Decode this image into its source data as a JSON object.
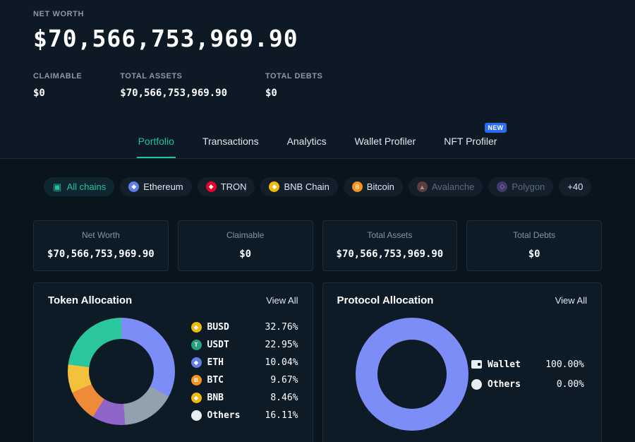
{
  "theme": {
    "accent_teal": "#1fc2a0",
    "new_badge_blue": "#2b6cf5",
    "page_bg": "#0a141d",
    "top_bg": "#0d1a25",
    "card_bg": "#0d1b27"
  },
  "header": {
    "net_worth_label": "NET WORTH",
    "net_worth_value": "$70,566,753,969.90",
    "stats": [
      {
        "label": "CLAIMABLE",
        "value": "$0"
      },
      {
        "label": "TOTAL ASSETS",
        "value": "$70,566,753,969.90"
      },
      {
        "label": "TOTAL DEBTS",
        "value": "$0"
      }
    ]
  },
  "tabs": [
    {
      "label": "Portfolio",
      "active": true
    },
    {
      "label": "Transactions",
      "active": false
    },
    {
      "label": "Analytics",
      "active": false
    },
    {
      "label": "Wallet Profiler",
      "active": false
    },
    {
      "label": "NFT Profiler",
      "active": false,
      "badge": "NEW"
    }
  ],
  "chains": [
    {
      "label": "All chains",
      "glyph": "▣",
      "icon_color": "#1fc2a0",
      "active": true
    },
    {
      "label": "Ethereum",
      "glyph": "◆",
      "icon_bg": "#627eea"
    },
    {
      "label": "TRON",
      "glyph": "◆",
      "icon_bg": "#eb0029"
    },
    {
      "label": "BNB Chain",
      "glyph": "◆",
      "icon_bg": "#f0b90b"
    },
    {
      "label": "Bitcoin",
      "glyph": "B",
      "icon_bg": "#f7931a"
    },
    {
      "label": "Avalanche",
      "glyph": "▲",
      "icon_bg": "#a0524c",
      "disabled": true
    },
    {
      "label": "Polygon",
      "glyph": "◇",
      "icon_bg": "#6d4fa3",
      "disabled": true
    },
    {
      "label": "+40"
    }
  ],
  "summary_cards": [
    {
      "label": "Net Worth",
      "value": "$70,566,753,969.90"
    },
    {
      "label": "Claimable",
      "value": "$0"
    },
    {
      "label": "Total Assets",
      "value": "$70,566,753,969.90"
    },
    {
      "label": "Total Debts",
      "value": "$0"
    }
  ],
  "chart_data": [
    {
      "type": "pie",
      "title": "Token Allocation",
      "view_all_label": "View All",
      "legend_position": "right",
      "series": [
        {
          "name": "BUSD",
          "value": 32.76,
          "display": "32.76%",
          "color": "#7d8df7",
          "icon_bg": "#f0b90b",
          "icon_glyph": "◆"
        },
        {
          "name": "USDT",
          "value": 22.95,
          "display": "22.95%",
          "color": "#2bc79c",
          "icon_bg": "#26a17b",
          "icon_glyph": "T"
        },
        {
          "name": "ETH",
          "value": 10.04,
          "display": "10.04%",
          "color": "#9065c9",
          "icon_bg": "#627eea",
          "icon_glyph": "◆"
        },
        {
          "name": "BTC",
          "value": 9.67,
          "display": "9.67%",
          "color": "#ee8b38",
          "icon_bg": "#f7931a",
          "icon_glyph": "B"
        },
        {
          "name": "BNB",
          "value": 8.46,
          "display": "8.46%",
          "color": "#f3c13c",
          "icon_bg": "#f0b90b",
          "icon_glyph": "◆"
        },
        {
          "name": "Others",
          "value": 16.11,
          "display": "16.11%",
          "color": "#93a0ae",
          "icon_bg": "#e9eef3",
          "icon_glyph": ""
        }
      ],
      "draw_order": [
        "BUSD",
        "Others",
        "ETH",
        "BTC",
        "BNB",
        "USDT"
      ]
    },
    {
      "type": "pie",
      "title": "Protocol Allocation",
      "view_all_label": "View All",
      "legend_position": "right",
      "series": [
        {
          "name": "Wallet",
          "value": 100,
          "display": "100.00%",
          "color": "#7d8df7",
          "icon": "wallet"
        },
        {
          "name": "Others",
          "value": 0,
          "display": "0.00%",
          "color": "#e9eef3",
          "icon_bg": "#e9eef3",
          "icon_glyph": ""
        }
      ],
      "draw_order": [
        "Wallet",
        "Others"
      ]
    }
  ]
}
